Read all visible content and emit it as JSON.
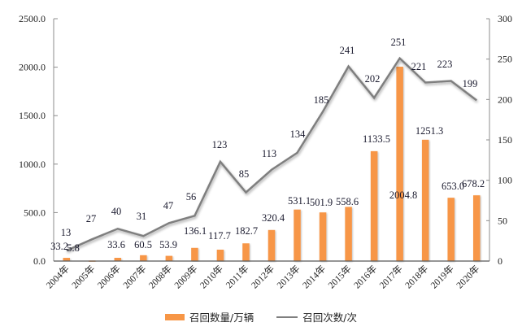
{
  "chart_data": {
    "type": "bar+line",
    "title": "",
    "categories": [
      "2004年",
      "2005年",
      "2006年",
      "2007年",
      "2008年",
      "2009年",
      "2010年",
      "2011年",
      "2012年",
      "2013年",
      "2014年",
      "2015年",
      "2016年",
      "2017年",
      "2018年",
      "2019年",
      "2020年"
    ],
    "series": [
      {
        "name": "召回数量/万辆",
        "type": "bar",
        "axis": "left",
        "color": "#F79646",
        "values": [
          33.2,
          5.8,
          33.6,
          60.5,
          53.9,
          136.1,
          117.7,
          182.7,
          320.4,
          531.1,
          501.9,
          558.6,
          1133.5,
          2004.8,
          1251.3,
          653.0,
          678.2
        ],
        "labels": [
          "33.2",
          "5.8",
          "33.6",
          "60.5",
          "53.9",
          "136.1",
          "117.7",
          "182.7",
          "320.4",
          "531.1",
          "501.9",
          "558.6",
          "1133.5",
          "2004.8",
          "1251.3",
          "653.0",
          "678.2"
        ]
      },
      {
        "name": "召回次数/次",
        "type": "line",
        "axis": "right",
        "color": "#7F7F7F",
        "values": [
          13,
          27,
          40,
          31,
          47,
          56,
          123,
          85,
          113,
          134,
          185,
          241,
          202,
          251,
          221,
          223,
          199
        ]
      }
    ],
    "left_axis": {
      "ylim": [
        0,
        2500
      ],
      "ticks": [
        "0.0",
        "500.0",
        "1000.0",
        "1500.0",
        "2000.0",
        "2500.0"
      ],
      "label": ""
    },
    "right_axis": {
      "ylim": [
        0,
        300
      ],
      "ticks": [
        "0",
        "50",
        "100",
        "150",
        "200",
        "250",
        "300"
      ],
      "label": ""
    },
    "xlabel": "",
    "grid": false,
    "legend_position": "bottom"
  },
  "legend": {
    "bar_label": "召回数量/万辆",
    "line_label": "召回次数/次"
  }
}
